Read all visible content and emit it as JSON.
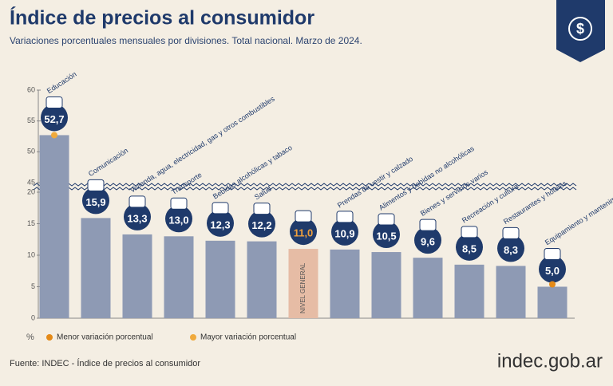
{
  "chart_data": {
    "type": "bar",
    "title": "Índice de precios al consumidor",
    "subtitle": "Variaciones porcentuales mensuales por divisiones. Total nacional. Marzo de 2024.",
    "y_unit": "%",
    "categories": [
      "Educación",
      "Comunicación",
      "Vivienda, agua, electricidad, gas y otros combustibles",
      "Transporte",
      "Bebidas alcohólicas y tabaco",
      "Salud",
      "NIVEL GENERAL",
      "Prendas de vestir y calzado",
      "Alimentos y bebidas no alcohólicas",
      "Bienes y servicios varios",
      "Recreación y cultura",
      "Restaurantes y hoteles",
      "Equipamiento y mantenimiento del hogar"
    ],
    "values": [
      52.7,
      15.9,
      13.3,
      13.0,
      12.3,
      12.2,
      11.0,
      10.9,
      10.5,
      9.6,
      8.5,
      8.3,
      5.0
    ],
    "value_labels": [
      "52,7",
      "15,9",
      "13,3",
      "13,0",
      "12,3",
      "12,2",
      "11,0",
      "10,9",
      "10,5",
      "9,6",
      "8,5",
      "8,3",
      "5,0"
    ],
    "color": "#8e9ab4",
    "colors": [
      "#8e9ab4",
      "#8e9ab4",
      "#8e9ab4",
      "#8e9ab4",
      "#8e9ab4",
      "#8e9ab4",
      "#e6bca5",
      "#8e9ab4",
      "#8e9ab4",
      "#8e9ab4",
      "#8e9ab4",
      "#8e9ab4",
      "#8e9ab4"
    ],
    "ylim": [
      0,
      60
    ],
    "axis_break": [
      20,
      45
    ],
    "yticks": [
      0,
      5,
      10,
      15,
      20,
      45,
      50,
      55,
      60
    ],
    "legend": [
      {
        "name": "Menor variación porcentual",
        "color": "#e48a18"
      },
      {
        "name": "Mayor variación porcentual",
        "color": "#f0aa3c"
      }
    ],
    "source": "Fuente: INDEC - Índice de precios al consumidor",
    "brand": "indec.gob.ar"
  }
}
